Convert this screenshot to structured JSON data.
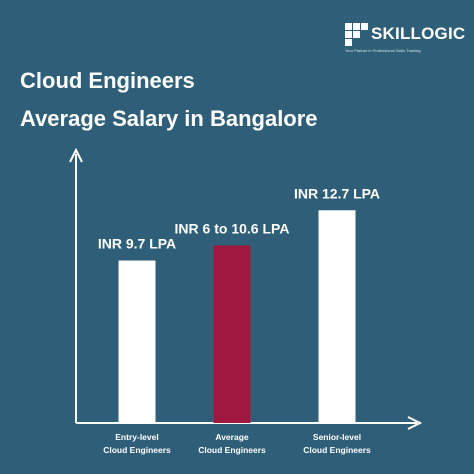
{
  "brand": {
    "name": "SKILLOGIC",
    "tagline": "Your Partner in Professional Skills Training"
  },
  "title_line1": "Cloud Engineers",
  "title_line2": "Average Salary in Bangalore",
  "colors": {
    "background": "#2f5f78",
    "bar_default": "#ffffff",
    "bar_highlight": "#a0173f",
    "axis": "#ffffff",
    "text": "#ffffff"
  },
  "chart_data": {
    "type": "bar",
    "title": "Cloud Engineers Average Salary in Bangalore",
    "xlabel": "",
    "ylabel": "",
    "ylim": [
      0,
      16
    ],
    "grid": false,
    "legend": "none",
    "categories": [
      [
        "Entry-level",
        "Cloud Engineers"
      ],
      [
        "Average",
        "Cloud Engineers"
      ],
      [
        "Senior-level",
        "Cloud Engineers"
      ]
    ],
    "values": [
      9.7,
      10.6,
      12.7
    ],
    "value_labels": [
      "INR 9.7 LPA",
      "INR 6 to 10.6 LPA",
      "INR 12.7 LPA"
    ],
    "highlight_index": 1
  }
}
